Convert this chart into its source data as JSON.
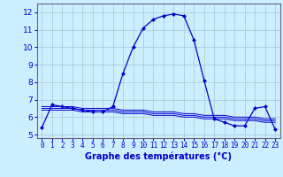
{
  "title": "Graphe des températures (°C)",
  "background_color": "#cceeff",
  "grid_color": "#aaccdd",
  "line_color": "#0000cc",
  "x_labels": [
    "0",
    "1",
    "2",
    "3",
    "4",
    "5",
    "6",
    "7",
    "8",
    "9",
    "10",
    "11",
    "12",
    "13",
    "14",
    "15",
    "16",
    "17",
    "18",
    "19",
    "20",
    "21",
    "22",
    "23"
  ],
  "ylim": [
    4.8,
    12.5
  ],
  "yticks": [
    5,
    6,
    7,
    8,
    9,
    10,
    11,
    12
  ],
  "main_series": [
    5.4,
    6.7,
    6.6,
    6.5,
    6.4,
    6.3,
    6.3,
    6.6,
    8.5,
    10.0,
    11.1,
    11.6,
    11.8,
    11.9,
    11.8,
    10.4,
    8.1,
    5.9,
    5.7,
    5.5,
    5.5,
    6.5,
    6.6,
    5.3
  ],
  "flat_series_1": [
    6.4,
    6.4,
    6.4,
    6.4,
    6.3,
    6.3,
    6.3,
    6.3,
    6.2,
    6.2,
    6.2,
    6.1,
    6.1,
    6.1,
    6.0,
    6.0,
    5.9,
    5.9,
    5.9,
    5.8,
    5.8,
    5.8,
    5.7,
    5.7
  ],
  "flat_series_2": [
    6.5,
    6.5,
    6.5,
    6.5,
    6.4,
    6.4,
    6.4,
    6.4,
    6.3,
    6.3,
    6.3,
    6.2,
    6.2,
    6.2,
    6.1,
    6.1,
    6.0,
    6.0,
    6.0,
    5.9,
    5.9,
    5.9,
    5.8,
    5.8
  ],
  "flat_series_3": [
    6.6,
    6.6,
    6.6,
    6.6,
    6.5,
    6.5,
    6.5,
    6.5,
    6.4,
    6.4,
    6.4,
    6.3,
    6.3,
    6.3,
    6.2,
    6.2,
    6.1,
    6.1,
    6.1,
    6.0,
    6.0,
    6.0,
    5.9,
    5.9
  ]
}
